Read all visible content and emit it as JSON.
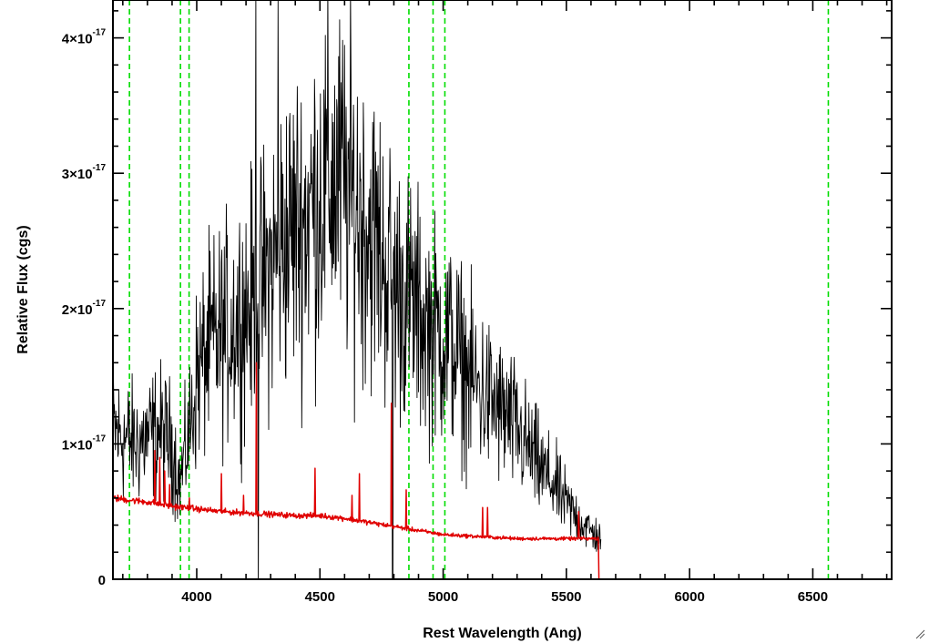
{
  "chart_data": {
    "type": "line",
    "xlabel": "Rest Wavelength (Ang)",
    "ylabel": "Relative Flux (cgs)",
    "xlim": [
      3660,
      6820
    ],
    "ylim": [
      0,
      4.28e-17
    ],
    "x_ticks": [
      {
        "value": 4000,
        "label": "4000"
      },
      {
        "value": 4500,
        "label": "4500"
      },
      {
        "value": 5000,
        "label": "5000"
      },
      {
        "value": 5500,
        "label": "5500"
      },
      {
        "value": 6000,
        "label": "6000"
      },
      {
        "value": 6500,
        "label": "6500"
      }
    ],
    "y_ticks": [
      {
        "value": 0,
        "mantissa": "0",
        "exponent": ""
      },
      {
        "value": 1e-17,
        "mantissa": "1×10",
        "exponent": "-17"
      },
      {
        "value": 2e-17,
        "mantissa": "2×10",
        "exponent": "-17"
      },
      {
        "value": 3e-17,
        "mantissa": "3×10",
        "exponent": "-17"
      },
      {
        "value": 4e-17,
        "mantissa": "4×10",
        "exponent": "-17"
      }
    ],
    "x_minor_step": 100,
    "y_minor_step": 2e-18,
    "vlines": [
      3727,
      3934,
      3969,
      4861,
      4959,
      5007,
      6563
    ],
    "series": [
      {
        "color": "#000000",
        "noise": 0.32,
        "x": [
          3660,
          3700,
          3750,
          3800,
          3850,
          3900,
          3930,
          3950,
          3980,
          4000,
          4050,
          4100,
          4150,
          4200,
          4250,
          4300,
          4350,
          4400,
          4450,
          4500,
          4550,
          4600,
          4650,
          4700,
          4750,
          4800,
          4850,
          4900,
          4950,
          5000,
          5050,
          5100,
          5150,
          5200,
          5250,
          5300,
          5350,
          5400,
          5450,
          5500,
          5550,
          5600,
          5640
        ],
        "y": [
          1.1e-17,
          1.05e-17,
          1e-17,
          1.05e-17,
          1.1e-17,
          1e-17,
          7e-18,
          9e-18,
          1.2e-17,
          1.5e-17,
          1.7e-17,
          1.8e-17,
          1.9e-17,
          2e-17,
          2.1e-17,
          2.3e-17,
          2.5e-17,
          2.6e-17,
          2.7e-17,
          2.85e-17,
          2.95e-17,
          2.9e-17,
          2.75e-17,
          2.6e-17,
          2.4e-17,
          2.2e-17,
          2.1e-17,
          1.95e-17,
          1.85e-17,
          1.8e-17,
          1.7e-17,
          1.5e-17,
          1.4e-17,
          1.3e-17,
          1.2e-17,
          1.1e-17,
          9.5e-18,
          8e-18,
          7e-18,
          5.5e-18,
          4.5e-18,
          3.5e-18,
          3e-18
        ]
      },
      {
        "color": "#e00000",
        "noise": 0.03,
        "x": [
          3660,
          3800,
          3900,
          4000,
          4100,
          4200,
          4300,
          4400,
          4500,
          4600,
          4700,
          4800,
          4900,
          5000,
          5100,
          5200,
          5300,
          5400,
          5500,
          5630,
          5631,
          5640,
          5700,
          6000,
          6500,
          6820
        ],
        "y": [
          6e-18,
          5.7e-18,
          5.4e-18,
          5.2e-18,
          5e-18,
          4.9e-18,
          4.8e-18,
          4.7e-18,
          4.7e-18,
          4.5e-18,
          4.2e-18,
          3.9e-18,
          3.6e-18,
          3.3e-18,
          3.2e-18,
          3.1e-18,
          3e-18,
          3e-18,
          3e-18,
          3e-18,
          0.0,
          0.0,
          0.0,
          0.0,
          0.0,
          0.0
        ]
      }
    ],
    "spikes": [
      {
        "series": 1,
        "x": 3830,
        "y": 9.5e-18
      },
      {
        "series": 1,
        "x": 3850,
        "y": 9e-18
      },
      {
        "series": 1,
        "x": 3870,
        "y": 8e-18
      },
      {
        "series": 1,
        "x": 3890,
        "y": 7e-18
      },
      {
        "series": 1,
        "x": 3970,
        "y": 6e-18
      },
      {
        "series": 1,
        "x": 4100,
        "y": 7.8e-18
      },
      {
        "series": 1,
        "x": 4190,
        "y": 6.2e-18
      },
      {
        "series": 1,
        "x": 4242,
        "y": 1.6e-17
      },
      {
        "series": 1,
        "x": 4480,
        "y": 8.2e-18
      },
      {
        "series": 1,
        "x": 4630,
        "y": 6.2e-18
      },
      {
        "series": 1,
        "x": 4660,
        "y": 7.8e-18
      },
      {
        "series": 1,
        "x": 4790,
        "y": 1.3e-17
      },
      {
        "series": 1,
        "x": 4850,
        "y": 6.6e-18
      },
      {
        "series": 1,
        "x": 5160,
        "y": 5.3e-18
      },
      {
        "series": 1,
        "x": 5180,
        "y": 5.3e-18
      },
      {
        "series": 1,
        "x": 5550,
        "y": 5e-18
      },
      {
        "series": 0,
        "x": 4240,
        "y": 4.4e-17
      },
      {
        "series": 0,
        "x": 4330,
        "y": 4.3e-17
      },
      {
        "series": 0,
        "x": 4250,
        "y": -2e-18
      },
      {
        "series": 0,
        "x": 4795,
        "y": -2e-18
      }
    ]
  }
}
